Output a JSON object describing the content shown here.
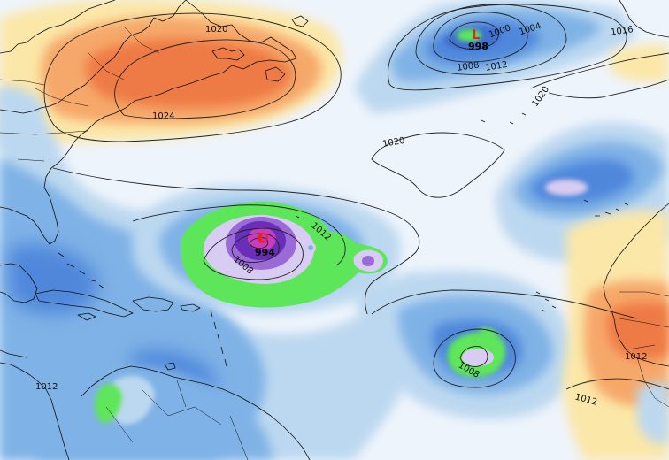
{
  "map": {
    "colors": {
      "ocean": "#eef4fb",
      "light_blue": "#bcd8f0",
      "mid_blue": "#7fb2e6",
      "blue": "#4f87db",
      "deep_blue": "#3f6fd0",
      "green": "#5ee65a",
      "lavender": "#d9ccf2",
      "purple": "#9a6ad6",
      "deep_purple": "#6a2fb8",
      "magenta": "#c83cc0",
      "yellow": "#fbe7a8",
      "orange": "#f6a86a",
      "dark_orange": "#ee7a45",
      "low_marker": "#e8231f"
    },
    "isobar_labels": [
      {
        "id": "iso-1020-a",
        "text": "1020"
      },
      {
        "id": "iso-1024",
        "text": "1024"
      },
      {
        "id": "iso-1000",
        "text": "1000"
      },
      {
        "id": "iso-1004",
        "text": "1004"
      },
      {
        "id": "iso-1008-a",
        "text": "1008"
      },
      {
        "id": "iso-1012-a",
        "text": "1012"
      },
      {
        "id": "iso-1016",
        "text": "1016"
      },
      {
        "id": "iso-1020-b",
        "text": "1020"
      },
      {
        "id": "iso-1020-c",
        "text": "1020"
      },
      {
        "id": "iso-1012-b",
        "text": "1012"
      },
      {
        "id": "iso-1008-b",
        "text": "1008"
      },
      {
        "id": "iso-1008-c",
        "text": "1008"
      },
      {
        "id": "iso-1012-c",
        "text": "1012"
      },
      {
        "id": "iso-1012-d",
        "text": "1012"
      },
      {
        "id": "iso-1012-e",
        "text": "1012"
      }
    ],
    "lows": [
      {
        "id": "low-north",
        "letter": "L",
        "value": "998"
      },
      {
        "id": "low-hurricane",
        "letter": "L",
        "value": "994"
      }
    ]
  }
}
